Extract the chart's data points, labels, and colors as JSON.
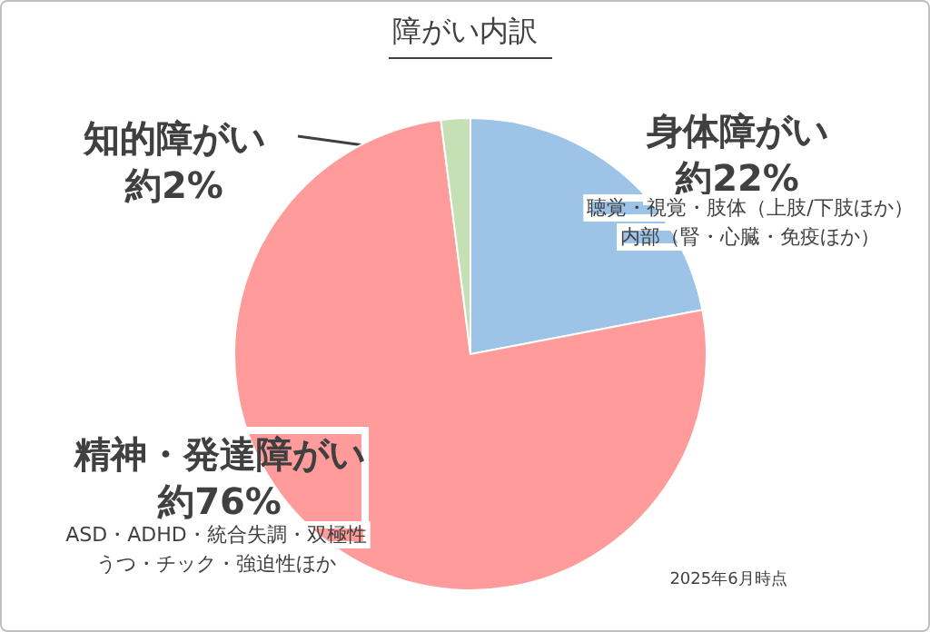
{
  "chart_data": {
    "type": "pie",
    "title": "障がい内訳",
    "categories": [
      "身体障がい",
      "精神・発達障がい",
      "知的障がい"
    ],
    "values": [
      22,
      76,
      2
    ],
    "colors": [
      "#9dc3e6",
      "#ff9b9b",
      "#c5e0b4"
    ],
    "value_labels": [
      "約22%",
      "約76%",
      "約2%"
    ],
    "annotations": [
      "聴覚・視覚・肢体（上肢/下肢ほか）",
      "内部（腎・心臓・免疫ほか）",
      "ASD・ADHD・統合失調・双極性",
      "うつ・チック・強迫性ほか",
      "2025年6月時点"
    ],
    "legend": false
  }
}
